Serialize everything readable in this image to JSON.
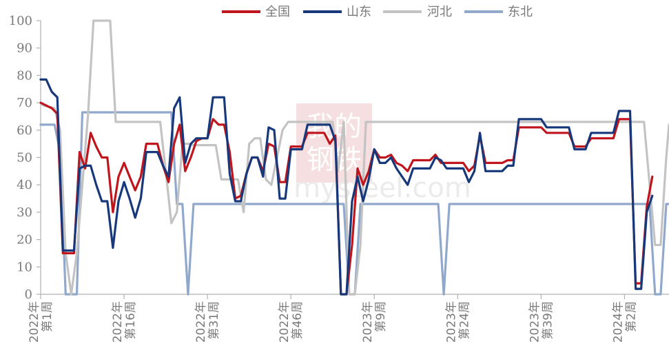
{
  "chart_data": {
    "type": "line",
    "ylim": [
      0,
      100
    ],
    "yticks": [
      0,
      10,
      20,
      30,
      40,
      50,
      60,
      70,
      80,
      90,
      100
    ],
    "grid": false,
    "legend_position": "top",
    "x_start_index": 0,
    "x_end_index": 113,
    "x_ticks": [
      {
        "index": 0,
        "line1": "2022年",
        "line2": "第1周"
      },
      {
        "index": 15,
        "line1": "2022年",
        "line2": "第16周"
      },
      {
        "index": 30,
        "line1": "2022年",
        "line2": "第31周"
      },
      {
        "index": 45,
        "line1": "2022年",
        "line2": "第46周"
      },
      {
        "index": 60,
        "line1": "2023年",
        "line2": "第9周"
      },
      {
        "index": 75,
        "line1": "2023年",
        "line2": "第24周"
      },
      {
        "index": 90,
        "line1": "2023年",
        "line2": "第39周"
      },
      {
        "index": 105,
        "line1": "2024年",
        "line2": "第2周"
      }
    ],
    "series": [
      {
        "name": "东北",
        "color": "#8fa8cc",
        "points": [
          [
            0,
            62
          ],
          [
            2.5,
            62
          ],
          [
            3.5,
            52
          ],
          [
            4.5,
            0
          ],
          [
            6.5,
            0
          ],
          [
            7.5,
            66.5
          ],
          [
            23.5,
            66.5
          ],
          [
            24.5,
            33
          ],
          [
            25.5,
            33
          ],
          [
            26.5,
            0
          ],
          [
            27.5,
            33
          ],
          [
            54.5,
            33
          ],
          [
            55.5,
            0
          ],
          [
            56.5,
            0
          ],
          [
            57.5,
            33
          ],
          [
            71.5,
            33
          ],
          [
            72.5,
            0
          ],
          [
            73.5,
            33
          ],
          [
            109.5,
            33
          ],
          [
            110.5,
            0
          ],
          [
            111.5,
            0
          ],
          [
            112.5,
            33
          ],
          [
            113,
            33
          ]
        ]
      },
      {
        "name": "河北",
        "color": "#c3c3c3",
        "points": [
          [
            0,
            70
          ],
          [
            0.5,
            69
          ],
          [
            2.5,
            68
          ],
          [
            3.5,
            60
          ],
          [
            4.5,
            15
          ],
          [
            5.5,
            0
          ],
          [
            6.5,
            15
          ],
          [
            7.5,
            40
          ],
          [
            8.5,
            65
          ],
          [
            9.5,
            100
          ],
          [
            12.5,
            100
          ],
          [
            13.5,
            63
          ],
          [
            21.5,
            63
          ],
          [
            22.5,
            45
          ],
          [
            23.5,
            26
          ],
          [
            24.5,
            30
          ],
          [
            25.5,
            55
          ],
          [
            26.5,
            55
          ],
          [
            27.5,
            54.5
          ],
          [
            31.5,
            54.5
          ],
          [
            32.5,
            42
          ],
          [
            35.5,
            42
          ],
          [
            36.5,
            30
          ],
          [
            37.5,
            55
          ],
          [
            38.5,
            57
          ],
          [
            39.5,
            57
          ],
          [
            40.5,
            42
          ],
          [
            41.5,
            40
          ],
          [
            42.5,
            50
          ],
          [
            43.5,
            60
          ],
          [
            44.5,
            63
          ],
          [
            52.5,
            63
          ],
          [
            53.5,
            45
          ],
          [
            54.5,
            63
          ],
          [
            55.5,
            0
          ],
          [
            56.5,
            0
          ],
          [
            57.5,
            18
          ],
          [
            58.5,
            63
          ],
          [
            108.5,
            63
          ],
          [
            110.5,
            18
          ],
          [
            111.5,
            18
          ],
          [
            112.5,
            50
          ],
          [
            113,
            62
          ]
        ]
      },
      {
        "name": "全国",
        "color": "#c0151c",
        "points": [
          [
            0,
            70
          ],
          [
            1,
            69
          ],
          [
            2,
            68
          ],
          [
            3,
            66
          ],
          [
            4,
            15
          ],
          [
            5,
            15
          ],
          [
            6,
            15
          ],
          [
            7,
            52
          ],
          [
            8,
            46
          ],
          [
            9,
            59
          ],
          [
            10,
            54
          ],
          [
            11,
            50
          ],
          [
            12,
            50
          ],
          [
            13,
            30
          ],
          [
            14,
            43
          ],
          [
            15,
            48
          ],
          [
            16,
            43
          ],
          [
            17,
            38
          ],
          [
            18,
            43
          ],
          [
            19,
            55
          ],
          [
            20,
            55
          ],
          [
            21,
            55
          ],
          [
            22,
            47
          ],
          [
            23,
            41
          ],
          [
            24,
            55
          ],
          [
            25,
            62
          ],
          [
            26,
            45
          ],
          [
            27,
            50
          ],
          [
            28,
            56
          ],
          [
            29,
            57
          ],
          [
            30,
            57
          ],
          [
            31,
            64
          ],
          [
            32,
            62
          ],
          [
            33,
            62
          ],
          [
            34,
            52
          ],
          [
            35,
            35
          ],
          [
            36,
            36
          ],
          [
            37,
            44
          ],
          [
            38,
            50
          ],
          [
            39,
            50
          ],
          [
            40,
            45
          ],
          [
            41,
            55
          ],
          [
            42,
            54
          ],
          [
            43,
            41
          ],
          [
            44,
            41
          ],
          [
            45,
            54
          ],
          [
            46,
            54
          ],
          [
            47,
            54
          ],
          [
            48,
            59
          ],
          [
            49,
            59
          ],
          [
            50,
            59
          ],
          [
            51,
            59
          ],
          [
            52,
            55
          ],
          [
            53,
            58
          ],
          [
            54,
            0
          ],
          [
            55,
            0
          ],
          [
            56,
            18
          ],
          [
            57,
            46
          ],
          [
            58,
            40
          ],
          [
            59,
            45
          ],
          [
            60,
            53
          ],
          [
            61,
            50
          ],
          [
            62,
            50
          ],
          [
            63,
            51
          ],
          [
            64,
            48
          ],
          [
            65,
            47
          ],
          [
            66,
            45
          ],
          [
            67,
            49
          ],
          [
            68,
            49
          ],
          [
            69,
            49
          ],
          [
            70,
            49
          ],
          [
            71,
            51
          ],
          [
            72,
            48
          ],
          [
            73,
            48
          ],
          [
            74,
            48
          ],
          [
            75,
            48
          ],
          [
            76,
            48
          ],
          [
            77,
            45
          ],
          [
            78,
            47
          ],
          [
            79,
            58
          ],
          [
            80,
            48
          ],
          [
            81,
            48
          ],
          [
            82,
            48
          ],
          [
            83,
            48
          ],
          [
            84,
            49
          ],
          [
            85,
            49
          ],
          [
            86,
            61
          ],
          [
            87,
            61
          ],
          [
            88,
            61
          ],
          [
            89,
            61
          ],
          [
            90,
            61
          ],
          [
            91,
            59
          ],
          [
            92,
            59
          ],
          [
            93,
            59
          ],
          [
            94,
            59
          ],
          [
            95,
            59
          ],
          [
            96,
            54
          ],
          [
            97,
            54
          ],
          [
            98,
            54
          ],
          [
            99,
            57
          ],
          [
            100,
            57
          ],
          [
            101,
            57
          ],
          [
            102,
            57
          ],
          [
            103,
            57
          ],
          [
            104,
            64
          ],
          [
            105,
            64
          ],
          [
            106,
            64
          ],
          [
            107,
            4
          ],
          [
            108,
            4
          ],
          [
            109,
            32
          ],
          [
            110,
            43
          ]
        ]
      },
      {
        "name": "山东",
        "color": "#17387a",
        "points": [
          [
            0,
            78.5
          ],
          [
            1,
            78.5
          ],
          [
            2,
            74
          ],
          [
            3,
            72
          ],
          [
            4,
            16
          ],
          [
            5,
            16
          ],
          [
            6,
            16
          ],
          [
            7,
            46
          ],
          [
            8,
            47
          ],
          [
            9,
            47
          ],
          [
            10,
            40
          ],
          [
            11,
            34
          ],
          [
            12,
            34
          ],
          [
            13,
            17
          ],
          [
            14,
            34
          ],
          [
            15,
            41
          ],
          [
            16,
            35
          ],
          [
            17,
            28
          ],
          [
            18,
            35
          ],
          [
            19,
            52
          ],
          [
            20,
            52
          ],
          [
            21,
            52
          ],
          [
            22,
            47
          ],
          [
            23,
            43
          ],
          [
            24,
            68
          ],
          [
            25,
            72
          ],
          [
            26,
            48
          ],
          [
            27,
            55
          ],
          [
            28,
            57
          ],
          [
            29,
            57
          ],
          [
            30,
            57
          ],
          [
            31,
            72
          ],
          [
            32,
            72
          ],
          [
            33,
            72
          ],
          [
            34,
            44
          ],
          [
            35,
            34
          ],
          [
            36,
            34
          ],
          [
            37,
            44
          ],
          [
            38,
            50
          ],
          [
            39,
            50
          ],
          [
            40,
            43
          ],
          [
            41,
            61
          ],
          [
            42,
            60
          ],
          [
            43,
            35
          ],
          [
            44,
            35
          ],
          [
            45,
            53
          ],
          [
            46,
            53
          ],
          [
            47,
            53
          ],
          [
            48,
            62
          ],
          [
            49,
            62
          ],
          [
            50,
            62
          ],
          [
            51,
            62
          ],
          [
            52,
            62
          ],
          [
            53,
            56
          ],
          [
            54,
            0
          ],
          [
            55,
            0
          ],
          [
            56,
            34
          ],
          [
            57,
            43
          ],
          [
            58,
            34
          ],
          [
            59,
            42
          ],
          [
            60,
            53
          ],
          [
            61,
            48
          ],
          [
            62,
            48
          ],
          [
            63,
            50
          ],
          [
            64,
            46
          ],
          [
            65,
            43
          ],
          [
            66,
            40
          ],
          [
            67,
            46
          ],
          [
            68,
            46
          ],
          [
            69,
            46
          ],
          [
            70,
            46
          ],
          [
            71,
            50
          ],
          [
            72,
            49
          ],
          [
            73,
            46
          ],
          [
            74,
            46
          ],
          [
            75,
            46
          ],
          [
            76,
            46
          ],
          [
            77,
            41
          ],
          [
            78,
            45
          ],
          [
            79,
            59
          ],
          [
            80,
            45
          ],
          [
            81,
            45
          ],
          [
            82,
            45
          ],
          [
            83,
            45
          ],
          [
            84,
            47
          ],
          [
            85,
            47
          ],
          [
            86,
            64
          ],
          [
            87,
            64
          ],
          [
            88,
            64
          ],
          [
            89,
            64
          ],
          [
            90,
            64
          ],
          [
            91,
            61
          ],
          [
            92,
            61
          ],
          [
            93,
            61
          ],
          [
            94,
            61
          ],
          [
            95,
            61
          ],
          [
            96,
            53
          ],
          [
            97,
            53
          ],
          [
            98,
            53
          ],
          [
            99,
            59
          ],
          [
            100,
            59
          ],
          [
            101,
            59
          ],
          [
            102,
            59
          ],
          [
            103,
            59
          ],
          [
            104,
            67
          ],
          [
            105,
            67
          ],
          [
            106,
            67
          ],
          [
            107,
            2
          ],
          [
            108,
            2
          ],
          [
            109,
            30
          ],
          [
            110,
            36
          ]
        ]
      }
    ],
    "legend_order": [
      "全国",
      "山东",
      "河北",
      "东北"
    ],
    "watermark": {
      "line1": "我的",
      "line2": "钢铁",
      "line3": "mysteel.com"
    }
  }
}
